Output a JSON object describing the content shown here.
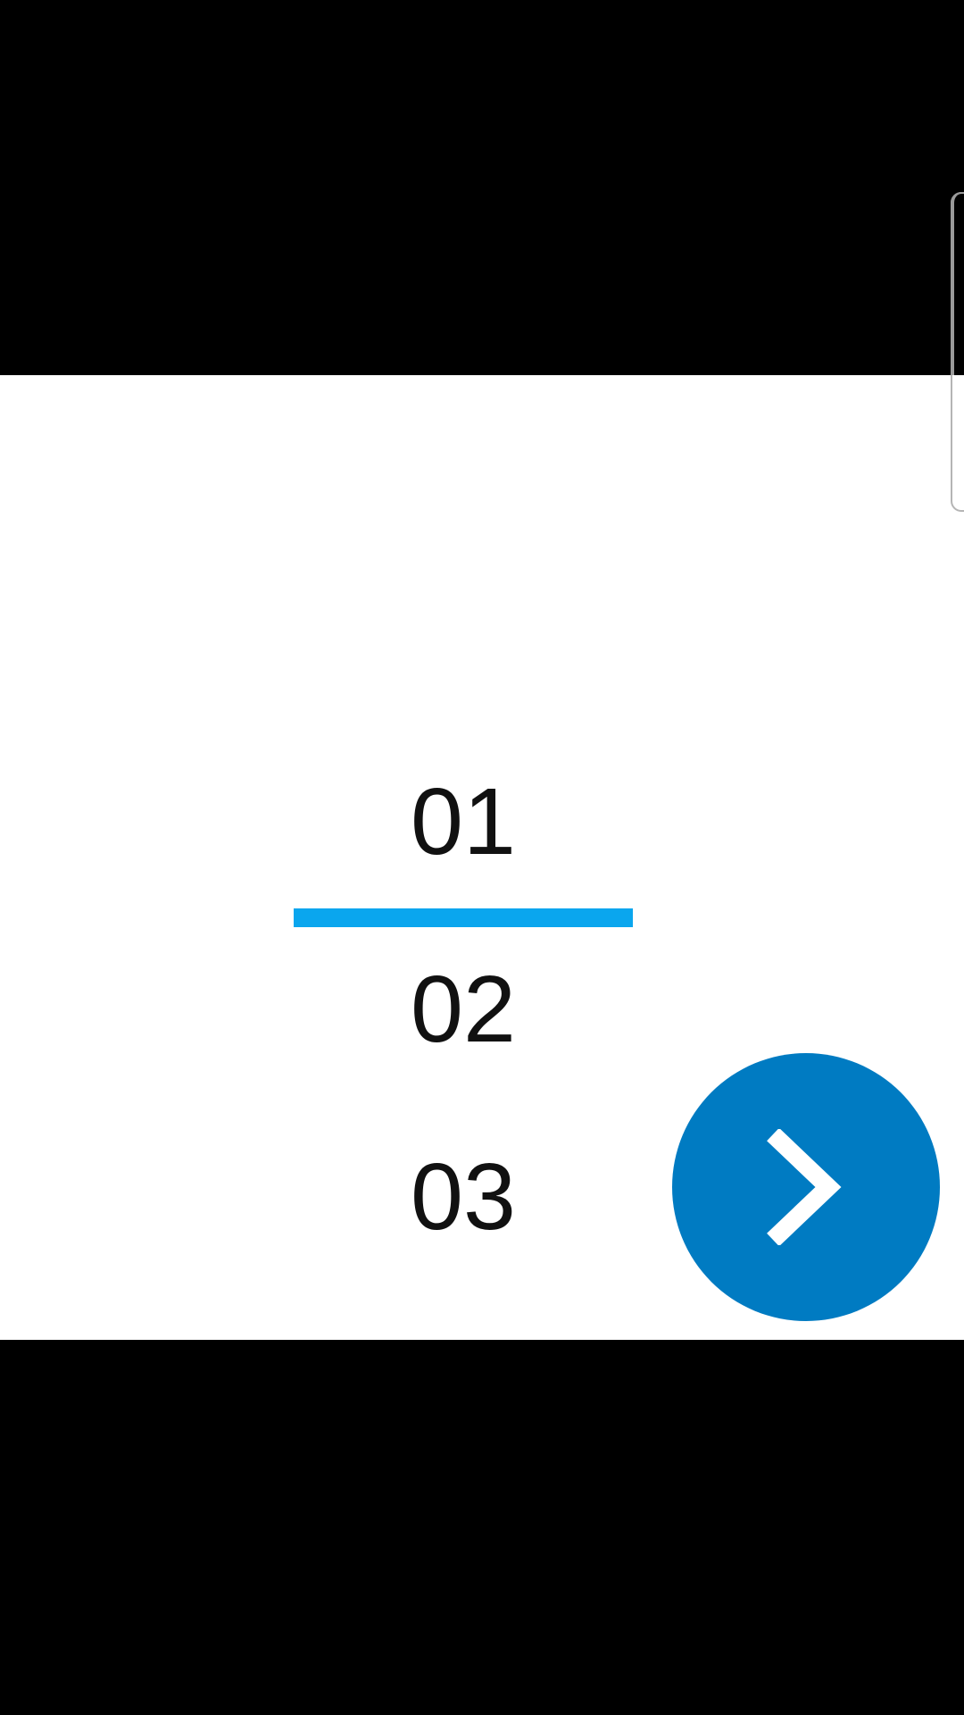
{
  "picker": {
    "items": [
      "01",
      "02",
      "03"
    ],
    "selected_index": 0
  },
  "next_button": {
    "icon": "chevron-right-icon"
  },
  "colors": {
    "selection_line": "#0aa6ee",
    "next_button": "#007bc2",
    "background": "#ffffff",
    "letterbox": "#000000"
  }
}
